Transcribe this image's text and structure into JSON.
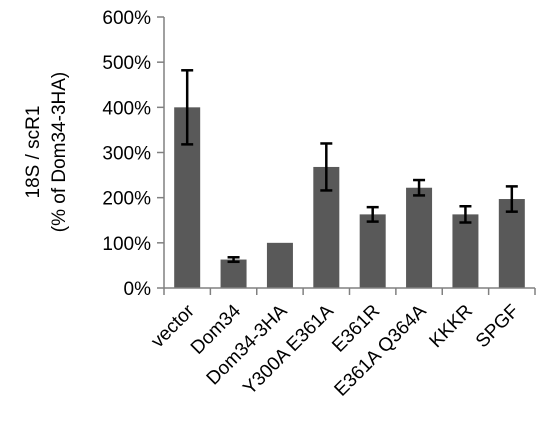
{
  "chart_data": {
    "type": "bar",
    "categories": [
      "vector",
      "Dom34",
      "Dom34-3HA",
      "Y300A E361A",
      "E361R",
      "E361A Q364A",
      "KKKR",
      "SPGF"
    ],
    "values": [
      400,
      63,
      100,
      268,
      163,
      222,
      163,
      197
    ],
    "errors": [
      82,
      5,
      0,
      52,
      16,
      17,
      18,
      28
    ],
    "ylabel_line1": "18S / scR1",
    "ylabel_line2": "(% of Dom34-3HA)",
    "ylim": [
      0,
      600
    ],
    "yticks": [
      0,
      100,
      200,
      300,
      400,
      500,
      600
    ],
    "ytick_labels": [
      "0%",
      "100%",
      "200%",
      "300%",
      "400%",
      "500%",
      "600%"
    ],
    "grid": false,
    "colors": {
      "bar": "#595959",
      "axis": "#808080",
      "error": "#000000"
    }
  }
}
